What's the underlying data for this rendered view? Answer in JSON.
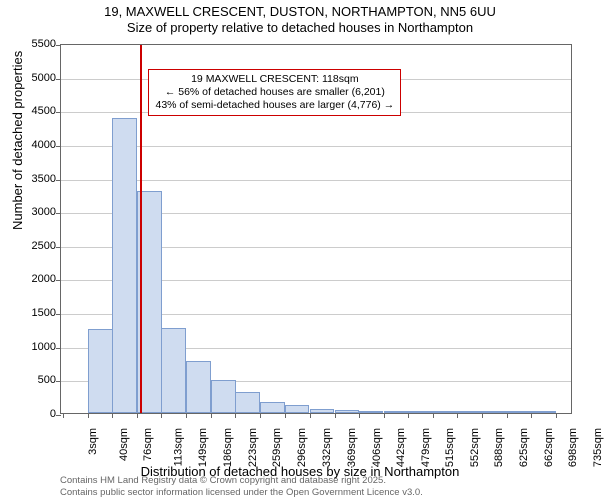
{
  "title": {
    "line1": "19, MAXWELL CRESCENT, DUSTON, NORTHAMPTON, NN5 6UU",
    "line2": "Size of property relative to detached houses in Northampton"
  },
  "chart": {
    "type": "histogram",
    "background_color": "#ffffff",
    "border_color": "#666666",
    "grid_color": "#cccccc",
    "bar_fill": "#cfdcf0",
    "bar_stroke": "#7f9ecf",
    "ylim": [
      0,
      5500
    ],
    "yticks": [
      0,
      500,
      1000,
      1500,
      2000,
      2500,
      3000,
      3500,
      4000,
      4500,
      5000,
      5500
    ],
    "xlim": [
      0,
      760
    ],
    "xticks": [
      3,
      40,
      76,
      113,
      149,
      186,
      223,
      259,
      296,
      332,
      369,
      406,
      442,
      479,
      515,
      552,
      588,
      625,
      662,
      698,
      735
    ],
    "xtick_labels": [
      "3sqm",
      "40sqm",
      "76sqm",
      "113sqm",
      "149sqm",
      "186sqm",
      "223sqm",
      "259sqm",
      "296sqm",
      "332sqm",
      "369sqm",
      "406sqm",
      "442sqm",
      "479sqm",
      "515sqm",
      "552sqm",
      "588sqm",
      "625sqm",
      "662sqm",
      "698sqm",
      "735sqm"
    ],
    "bin_width": 36.6,
    "bins": [
      {
        "x": 3,
        "count": 0
      },
      {
        "x": 40,
        "count": 1250
      },
      {
        "x": 76,
        "count": 4380
      },
      {
        "x": 113,
        "count": 3300
      },
      {
        "x": 149,
        "count": 1260
      },
      {
        "x": 186,
        "count": 780
      },
      {
        "x": 223,
        "count": 490
      },
      {
        "x": 259,
        "count": 310
      },
      {
        "x": 296,
        "count": 170
      },
      {
        "x": 332,
        "count": 120
      },
      {
        "x": 369,
        "count": 60
      },
      {
        "x": 406,
        "count": 40
      },
      {
        "x": 442,
        "count": 20
      },
      {
        "x": 479,
        "count": 15
      },
      {
        "x": 515,
        "count": 10
      },
      {
        "x": 552,
        "count": 8
      },
      {
        "x": 588,
        "count": 6
      },
      {
        "x": 625,
        "count": 5
      },
      {
        "x": 662,
        "count": 4
      },
      {
        "x": 698,
        "count": 3
      }
    ],
    "marker": {
      "x_value": 118,
      "color": "#cc0000"
    },
    "annotation": {
      "line1": "19 MAXWELL CRESCENT: 118sqm",
      "line2": "← 56% of detached houses are smaller (6,201)",
      "line3": "43% of semi-detached houses are larger (4,776) →",
      "border_color": "#cc0000",
      "text_color": "#000000",
      "x_value": 260,
      "y_value": 5150
    },
    "ylabel": "Number of detached properties",
    "xlabel": "Distribution of detached houses by size in Northampton",
    "title_fontsize": 13,
    "axis_label_fontsize": 13,
    "tick_fontsize": 11
  },
  "footer": {
    "line1": "Contains HM Land Registry data © Crown copyright and database right 2025.",
    "line2": "Contains public sector information licensed under the Open Government Licence v3.0.",
    "color": "#666666"
  }
}
